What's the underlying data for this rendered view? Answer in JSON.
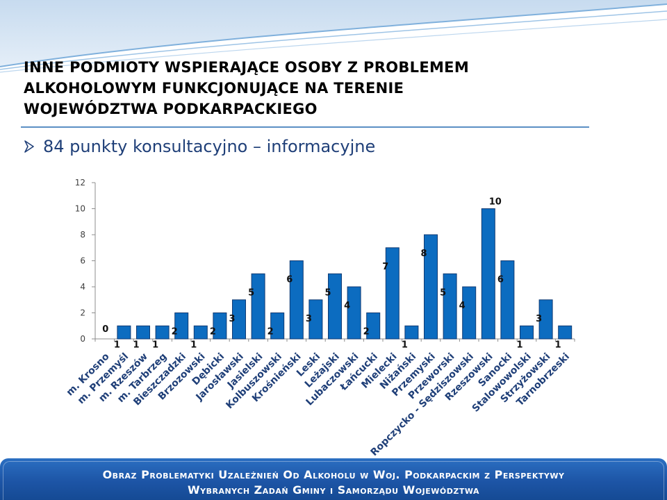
{
  "slide": {
    "title_lines": [
      "INNE PODMIOTY WSPIERAJĄCE  OSOBY Z PROBLEMEM",
      "ALKOHOLOWYM  FUNKCJONUJĄCE NA TERENIE",
      "WOJEWÓDZTWA PODKARPACKIEGO"
    ],
    "bullet_text": "84 punkty konsultacyjno – informacyjne",
    "bullet_icon": "arrow-bullet-icon",
    "footer_lines": [
      "Obraz Problematyki Uzależnień Od Alkoholu w Woj. Podkarpackim z Perspektywy",
      "Wybranych Zadań Gminy i Samorządu Województwa"
    ]
  },
  "colors": {
    "bar_fill": "#0c6cc0",
    "bar_stroke": "#103a73",
    "title_text": "#000000",
    "bullet_text": "#1f3f78",
    "footer_bg": "#1d55a6",
    "footer_text": "#ffffff",
    "axis_line": "#8c8c8c"
  },
  "chart_data": {
    "type": "bar",
    "categories": [
      "m. Krosno",
      "m. Przemyśl",
      "m. Rzeszów",
      "m. Tarbrzeg",
      "Bieszczadzki",
      "Brzozowski",
      "Dębicki",
      "Jarosławski",
      "Jasielski",
      "Kolbuszowski",
      "Krośnieński",
      "Leski",
      "Leżajski",
      "Lubaczowski",
      "Łańcucki",
      "Mielecki",
      "Niżański",
      "Przemyski",
      "Przeworski",
      "Ropczycko - Sędziszowski",
      "Rzeszowski",
      "Sanocki",
      "Stalowowolski",
      "Strzyżowski",
      "Tarnobrzeski"
    ],
    "values": [
      0,
      1,
      1,
      1,
      2,
      1,
      2,
      3,
      5,
      2,
      6,
      3,
      5,
      4,
      2,
      7,
      1,
      8,
      5,
      4,
      10,
      6,
      1,
      3,
      1
    ],
    "yticks": [
      0,
      2,
      4,
      6,
      8,
      10,
      12
    ],
    "ylim": [
      0,
      12
    ],
    "title": "",
    "xlabel": "",
    "ylabel": "",
    "data_labels": true,
    "grid": false,
    "legend": "none"
  }
}
